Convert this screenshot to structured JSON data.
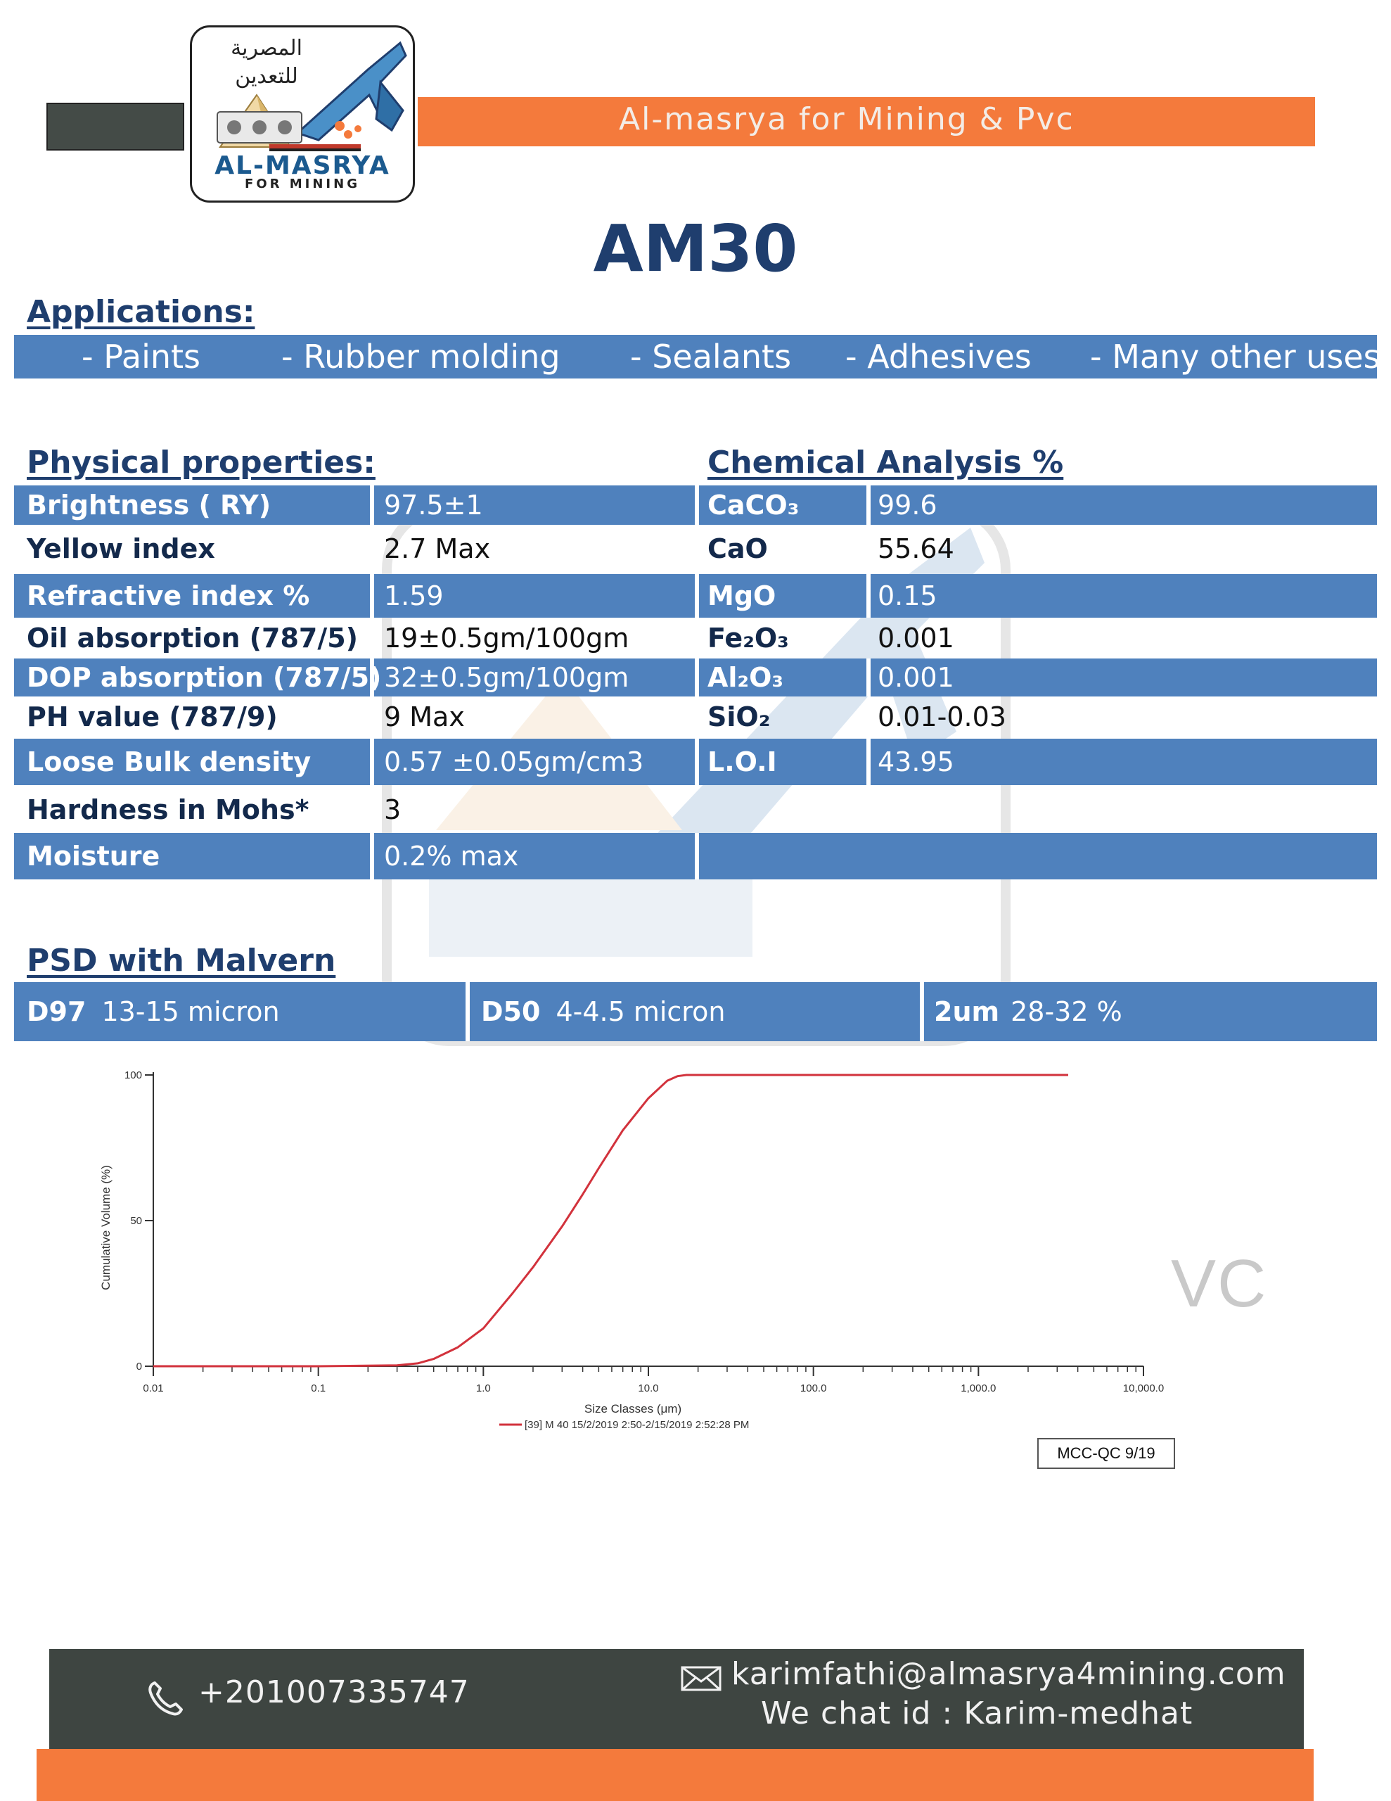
{
  "brand": {
    "logo_arabic_line1": "المصرية",
    "logo_arabic_line2": "للتعدين",
    "logo_name": "AL-MASRYA",
    "logo_sub": "FOR MINING",
    "banner": "Al-masrya for Mining & Pvc"
  },
  "product": {
    "name": "AM30"
  },
  "applications": {
    "heading": "Applications:",
    "items": [
      "-   Paints",
      "-  Rubber molding",
      "- Sealants",
      "- Adhesives",
      "- Many other uses"
    ]
  },
  "physical": {
    "heading": "Physical properties:",
    "rows": [
      {
        "label": "Brightness   ( RY)",
        "value": "97.5±1"
      },
      {
        "label": "Yellow index",
        "value": "2.7 Max"
      },
      {
        "label": "Refractive index %",
        "value": "1.59"
      },
      {
        "label": "Oil absorption (787/5)",
        "value": "19±0.5gm/100gm"
      },
      {
        "label": "DOP absorption (787/5)",
        "value": "32±0.5gm/100gm"
      },
      {
        "label": "PH value (787/9)",
        "value": "9 Max"
      },
      {
        "label": "Loose Bulk density",
        "value": "0.57 ±0.05gm/cm3"
      },
      {
        "label": "Hardness in Mohs*",
        "value": "3"
      },
      {
        "label": "Moisture",
        "value": "0.2% max"
      }
    ]
  },
  "chemical": {
    "heading": "Chemical Analysis %",
    "rows": [
      {
        "label": "CaCO₃",
        "value": "99.6"
      },
      {
        "label": "CaO",
        "value": "55.64"
      },
      {
        "label": "MgO",
        "value": "0.15"
      },
      {
        "label": "Fe₂O₃",
        "value": "0.001"
      },
      {
        "label": "Al₂O₃",
        "value": "0.001"
      },
      {
        "label": "SiO₂",
        "value": "0.01-0.03"
      },
      {
        "label": "L.O.I",
        "value": "43.95"
      }
    ]
  },
  "psd": {
    "heading": "PSD with Malvern",
    "items": [
      {
        "label": "D97",
        "value": "13-15   micron"
      },
      {
        "label": "D50",
        "value": "4-4.5  micron"
      },
      {
        "label": "2um",
        "value": "28-32 %"
      }
    ]
  },
  "chart_data": {
    "type": "line",
    "xlabel": "Size Classes (μm)",
    "ylabel": "Cumulative Volume (%)",
    "x_scale": "log",
    "xlim": [
      0.01,
      10000
    ],
    "ylim": [
      0,
      100
    ],
    "x_ticks": [
      "0.01",
      "0.1",
      "1.0",
      "10.0",
      "100.0",
      "1,000.0",
      "10,000.0"
    ],
    "y_ticks": [
      "0",
      "50",
      "100"
    ],
    "grid": false,
    "legend_position": "bottom",
    "series": [
      {
        "name": "[39] M 40 15/2/2019 2:50-2/15/2019 2:52:28 PM",
        "color": "#d2323c",
        "x": [
          0.01,
          0.1,
          0.3,
          0.4,
          0.5,
          0.7,
          1.0,
          1.5,
          2.0,
          3.0,
          4.0,
          5.0,
          7.0,
          10.0,
          13.0,
          15.0,
          17.0,
          100.0,
          1000.0,
          3500.0
        ],
        "y": [
          0,
          0,
          0.3,
          1,
          2.5,
          6.5,
          13,
          25,
          34,
          48,
          59,
          68,
          81,
          92,
          98,
          99.6,
          100,
          100,
          100,
          100
        ]
      }
    ]
  },
  "doc_code": "MCC-QC 9/19",
  "watermark_text": "VC",
  "contact": {
    "phone": "+201007335747",
    "email": "karimfathi@almasrya4mining.com",
    "wechat": "We chat id : Karim-medhat"
  },
  "colors": {
    "band_blue": "#4f81bd",
    "heading_navy": "#1f3e6e",
    "accent_orange": "#f47a3c",
    "footer_dark": "#3e4541",
    "curve_red": "#d2323c"
  }
}
